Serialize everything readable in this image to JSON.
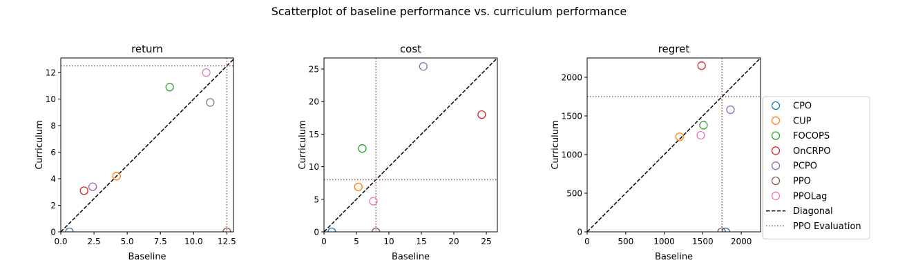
{
  "figure": {
    "suptitle": "Scatterplot of baseline performance vs. curriculum performance"
  },
  "legend": {
    "placement": "right of third panel",
    "entries": [
      {
        "label": "CPO",
        "color": "#1f77b4",
        "kind": "marker"
      },
      {
        "label": "CUP",
        "color": "#ff7f0e",
        "kind": "marker"
      },
      {
        "label": "FOCOPS",
        "color": "#2ca02c",
        "kind": "marker"
      },
      {
        "label": "OnCRPO",
        "color": "#d62728",
        "kind": "marker"
      },
      {
        "label": "PCPO",
        "color": "#9467bd",
        "kind": "marker"
      },
      {
        "label": "PPO",
        "color": "#8c564b",
        "kind": "marker"
      },
      {
        "label": "PPOLag",
        "color": "#e377c2",
        "kind": "marker"
      },
      {
        "label": "Diagonal",
        "color": "#000000",
        "kind": "dashed-line"
      },
      {
        "label": "PPO Evaluation",
        "color": "#8c564b",
        "kind": "dotted-line"
      }
    ]
  },
  "chart_data": [
    {
      "type": "scatter",
      "title": "return",
      "xlabel": "Baseline",
      "ylabel": "Curriculum",
      "xlim": [
        0,
        13
      ],
      "ylim": [
        0,
        13.1
      ],
      "xticks": [
        0,
        2.5,
        5,
        7.5,
        10,
        12.5
      ],
      "xtick_labels": [
        "0.0",
        "2.5",
        "5.0",
        "7.5",
        "10.0",
        "12.5"
      ],
      "yticks": [
        0,
        2,
        4,
        6,
        8,
        10,
        12
      ],
      "ytick_labels": [
        "0",
        "2",
        "4",
        "6",
        "8",
        "10",
        "12"
      ],
      "diagonal": true,
      "ppo_evaluation": {
        "x": 12.5,
        "y": 12.5
      },
      "series": [
        {
          "name": "CPO",
          "color": "#1f77b4",
          "x": 0.65,
          "y": 0.0
        },
        {
          "name": "CUP",
          "color": "#ff7f0e",
          "x": 4.2,
          "y": 4.2
        },
        {
          "name": "FOCOPS",
          "color": "#2ca02c",
          "x": 8.2,
          "y": 10.9
        },
        {
          "name": "OnCRPO",
          "color": "#d62728",
          "x": 1.75,
          "y": 3.1
        },
        {
          "name": "PCPO",
          "color": "#9467bd",
          "x": 2.4,
          "y": 3.4
        },
        {
          "name": "PPO",
          "color": "#8c564b",
          "x": 12.5,
          "y": 0.0
        },
        {
          "name": "PPOLag",
          "color": "#e377c2",
          "x": 10.95,
          "y": 12.0
        },
        {
          "name": "",
          "color": "#7f7f7f",
          "x": 11.25,
          "y": 9.75
        }
      ]
    },
    {
      "type": "scatter",
      "title": "cost",
      "xlabel": "Baseline",
      "ylabel": "Curriculum",
      "xlim": [
        0,
        26.7
      ],
      "ylim": [
        0,
        26.7
      ],
      "xticks": [
        0,
        5,
        10,
        15,
        20,
        25
      ],
      "xtick_labels": [
        "0",
        "5",
        "10",
        "15",
        "20",
        "25"
      ],
      "yticks": [
        0,
        5,
        10,
        15,
        20,
        25
      ],
      "ytick_labels": [
        "0",
        "5",
        "10",
        "15",
        "20",
        "25"
      ],
      "diagonal": true,
      "ppo_evaluation": {
        "x": 8.0,
        "y": 8.0
      },
      "series": [
        {
          "name": "CPO",
          "color": "#1f77b4",
          "x": 1.2,
          "y": 0.0
        },
        {
          "name": "CUP",
          "color": "#ff7f0e",
          "x": 5.3,
          "y": 6.9
        },
        {
          "name": "FOCOPS",
          "color": "#2ca02c",
          "x": 5.9,
          "y": 12.8
        },
        {
          "name": "OnCRPO",
          "color": "#d62728",
          "x": 24.3,
          "y": 18.0
        },
        {
          "name": "PCPO",
          "color": "#9467bd",
          "x": 15.3,
          "y": 25.4
        },
        {
          "name": "PPO",
          "color": "#8c564b",
          "x": 8.0,
          "y": 0.0
        },
        {
          "name": "PPOLag",
          "color": "#e377c2",
          "x": 7.6,
          "y": 4.7
        }
      ]
    },
    {
      "type": "scatter",
      "title": "regret",
      "xlabel": "Baseline",
      "ylabel": "Curriculum",
      "xlim": [
        0,
        2250
      ],
      "ylim": [
        0,
        2250
      ],
      "xticks": [
        0,
        500,
        1000,
        1500,
        2000
      ],
      "xtick_labels": [
        "0",
        "500",
        "1000",
        "1500",
        "2000"
      ],
      "yticks": [
        0,
        500,
        1000,
        1500,
        2000
      ],
      "ytick_labels": [
        "0",
        "500",
        "1000",
        "1500",
        "2000"
      ],
      "diagonal": true,
      "ppo_evaluation": {
        "x": 1750,
        "y": 1750
      },
      "series": [
        {
          "name": "CPO",
          "color": "#1f77b4",
          "x": 1800,
          "y": 0
        },
        {
          "name": "CUP",
          "color": "#ff7f0e",
          "x": 1200,
          "y": 1230
        },
        {
          "name": "FOCOPS",
          "color": "#2ca02c",
          "x": 1510,
          "y": 1380
        },
        {
          "name": "OnCRPO",
          "color": "#d62728",
          "x": 1485,
          "y": 2150
        },
        {
          "name": "PCPO",
          "color": "#9467bd",
          "x": 1860,
          "y": 1580
        },
        {
          "name": "PPO",
          "color": "#8c564b",
          "x": 1745,
          "y": 0
        },
        {
          "name": "PPOLag",
          "color": "#e377c2",
          "x": 1475,
          "y": 1250
        }
      ]
    }
  ]
}
